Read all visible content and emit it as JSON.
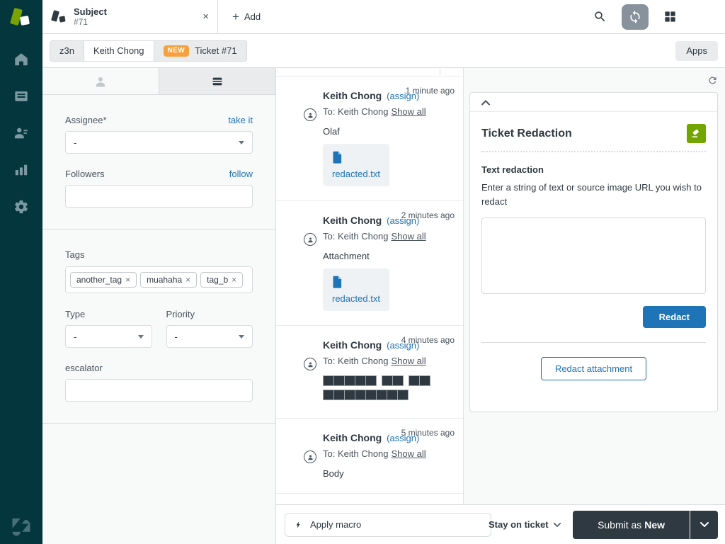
{
  "colors": {
    "accent": "#1f73b7",
    "nav": "#03363d",
    "badge": "#f5a13d",
    "green": "#72a500",
    "dark": "#2f3941"
  },
  "icons": {
    "search": "magnifier",
    "refresh": "sync-circular-arrows",
    "apps_grid": "four-squares",
    "close": "×",
    "plus": "+",
    "chevron_down": "v",
    "chevron_up": "^",
    "reload": "circular-arrow",
    "lightning": "bolt",
    "eraser": "white-eraser-on-green",
    "document": "blue-file",
    "person": "person-silhouette",
    "ticket_fields": "stacked-card"
  },
  "topbar": {
    "tab": {
      "title": "Subject",
      "subtitle": "#71",
      "close": "×"
    },
    "plus_glyph": "+",
    "add_label": "Add"
  },
  "breadcrumb": {
    "account": "z3n",
    "requester": "Keith Chong",
    "status_badge": "NEW",
    "ticket_label": "Ticket #71",
    "apps_button": "Apps"
  },
  "ticket_sidebar": {
    "assignee": {
      "label": "Assignee*",
      "action": "take it",
      "value": "-"
    },
    "followers": {
      "label": "Followers",
      "action": "follow",
      "value": ""
    },
    "tags": {
      "label": "Tags",
      "items": [
        "another_tag",
        "muahaha",
        "tag_b"
      ],
      "remove_glyph": "×"
    },
    "type": {
      "label": "Type",
      "value": "-"
    },
    "priority": {
      "label": "Priority",
      "value": "-"
    },
    "escalator": {
      "label": "escalator",
      "value": ""
    }
  },
  "conversation": {
    "messages": [
      {
        "author": "Keith Chong",
        "assign": "(assign)",
        "time": "1 minute ago",
        "to": "To: Keith Chong",
        "show_all": "Show all",
        "body": "Olaf",
        "attachment": "redacted.txt"
      },
      {
        "author": "Keith Chong",
        "assign": "(assign)",
        "time": "2 minutes ago",
        "to": "To: Keith Chong",
        "show_all": "Show all",
        "body": "Attachment",
        "attachment": "redacted.txt"
      },
      {
        "author": "Keith Chong",
        "assign": "(assign)",
        "time": "4 minutes ago",
        "to": "To: Keith Chong",
        "show_all": "Show all",
        "redacted_rows": [
          [
            5,
            2,
            2
          ],
          [
            8
          ]
        ]
      },
      {
        "author": "Keith Chong",
        "assign": "(assign)",
        "time": "5 minutes ago",
        "to": "To: Keith Chong",
        "show_all": "Show all",
        "body": "Body"
      }
    ]
  },
  "apps_panel": {
    "title": "Ticket Redaction",
    "section_title": "Text redaction",
    "description": "Enter a string of text or source image URL you wish to redact",
    "textarea_value": "",
    "redact_button": "Redact",
    "redact_attachment_button": "Redact attachment"
  },
  "footer": {
    "apply_macro": "Apply macro",
    "stay_on_ticket": "Stay on ticket",
    "submit_prefix": "Submit as",
    "submit_status": "New"
  }
}
